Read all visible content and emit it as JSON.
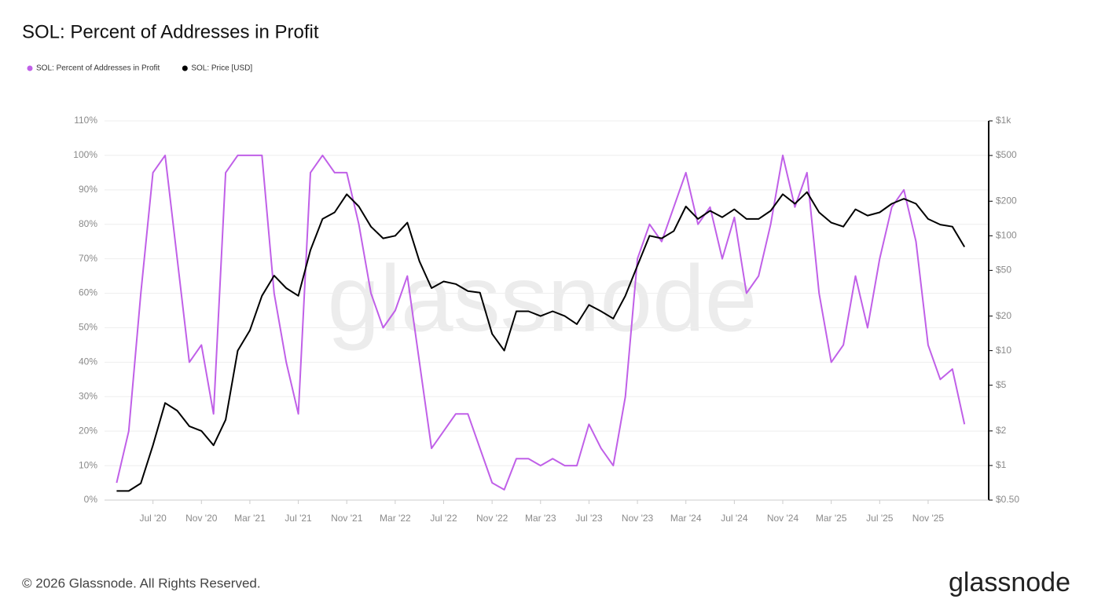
{
  "chart_data": {
    "type": "line",
    "title": "SOL: Percent of Addresses in Profit",
    "watermark": "glassnode",
    "footer": "© 2026 Glassnode. All Rights Reserved.",
    "logo": "glassnode",
    "x": [
      "2020-04",
      "2020-05",
      "2020-06",
      "2020-07",
      "2020-08",
      "2020-09",
      "2020-10",
      "2020-11",
      "2020-12",
      "2021-01",
      "2021-02",
      "2021-03",
      "2021-04",
      "2021-05",
      "2021-06",
      "2021-07",
      "2021-08",
      "2021-09",
      "2021-10",
      "2021-11",
      "2021-12",
      "2022-01",
      "2022-02",
      "2022-03",
      "2022-04",
      "2022-05",
      "2022-06",
      "2022-07",
      "2022-08",
      "2022-09",
      "2022-10",
      "2022-11",
      "2022-12",
      "2023-01",
      "2023-02",
      "2023-03",
      "2023-04",
      "2023-05",
      "2023-06",
      "2023-07",
      "2023-08",
      "2023-09",
      "2023-10",
      "2023-11",
      "2023-12",
      "2024-01",
      "2024-02",
      "2024-03",
      "2024-04",
      "2024-05",
      "2024-06",
      "2024-07",
      "2024-08",
      "2024-09",
      "2024-10",
      "2024-11",
      "2024-12",
      "2025-01",
      "2025-02",
      "2025-03",
      "2025-04",
      "2025-05",
      "2025-06",
      "2025-07",
      "2025-08",
      "2025-09",
      "2025-10",
      "2025-11",
      "2025-12",
      "2026-01",
      "2026-02"
    ],
    "series": [
      {
        "name": "SOL: Percent of Addresses in Profit",
        "color": "#c060e8",
        "axis": "y",
        "values": [
          5,
          20,
          60,
          95,
          100,
          70,
          40,
          45,
          25,
          95,
          100,
          100,
          100,
          60,
          40,
          25,
          95,
          100,
          95,
          95,
          80,
          60,
          50,
          55,
          65,
          40,
          15,
          20,
          25,
          25,
          15,
          5,
          3,
          12,
          12,
          10,
          12,
          10,
          10,
          22,
          15,
          10,
          30,
          70,
          80,
          75,
          85,
          95,
          80,
          85,
          70,
          82,
          60,
          65,
          80,
          100,
          85,
          95,
          60,
          40,
          45,
          65,
          50,
          70,
          85,
          90,
          75,
          45,
          35,
          38,
          22
        ]
      },
      {
        "name": "SOL: Price [USD]",
        "color": "#000000",
        "axis": "y2",
        "values": [
          0.6,
          0.6,
          0.7,
          1.5,
          3.5,
          3,
          2.2,
          2,
          1.5,
          2.5,
          10,
          15,
          30,
          45,
          35,
          30,
          75,
          140,
          160,
          230,
          180,
          120,
          95,
          100,
          130,
          60,
          35,
          40,
          38,
          33,
          32,
          14,
          10,
          22,
          22,
          20,
          22,
          20,
          17,
          25,
          22,
          19,
          30,
          55,
          100,
          95,
          110,
          180,
          140,
          165,
          145,
          170,
          140,
          140,
          165,
          230,
          190,
          240,
          160,
          130,
          120,
          170,
          150,
          160,
          190,
          210,
          190,
          140,
          125,
          120,
          80
        ]
      }
    ],
    "xlim": [
      "2020-03",
      "2026-04"
    ],
    "xticks": [
      {
        "value": "2020-07",
        "label": "Jul '20"
      },
      {
        "value": "2020-11",
        "label": "Nov '20"
      },
      {
        "value": "2021-03",
        "label": "Mar '21"
      },
      {
        "value": "2021-07",
        "label": "Jul '21"
      },
      {
        "value": "2021-11",
        "label": "Nov '21"
      },
      {
        "value": "2022-03",
        "label": "Mar '22"
      },
      {
        "value": "2022-07",
        "label": "Jul '22"
      },
      {
        "value": "2022-11",
        "label": "Nov '22"
      },
      {
        "value": "2023-03",
        "label": "Mar '23"
      },
      {
        "value": "2023-07",
        "label": "Jul '23"
      },
      {
        "value": "2023-11",
        "label": "Nov '23"
      },
      {
        "value": "2024-03",
        "label": "Mar '24"
      },
      {
        "value": "2024-07",
        "label": "Jul '24"
      },
      {
        "value": "2024-11",
        "label": "Nov '24"
      },
      {
        "value": "2025-03",
        "label": "Mar '25"
      },
      {
        "value": "2025-07",
        "label": "Jul '25"
      },
      {
        "value": "2025-11",
        "label": "Nov '25"
      }
    ],
    "ylim": [
      0,
      110
    ],
    "yticks": [
      {
        "value": 0,
        "label": "0%"
      },
      {
        "value": 10,
        "label": "10%"
      },
      {
        "value": 20,
        "label": "20%"
      },
      {
        "value": 30,
        "label": "30%"
      },
      {
        "value": 40,
        "label": "40%"
      },
      {
        "value": 50,
        "label": "50%"
      },
      {
        "value": 60,
        "label": "60%"
      },
      {
        "value": 70,
        "label": "70%"
      },
      {
        "value": 80,
        "label": "80%"
      },
      {
        "value": 90,
        "label": "90%"
      },
      {
        "value": 100,
        "label": "100%"
      },
      {
        "value": 110,
        "label": "110%"
      }
    ],
    "y2lim": [
      0.5,
      1000
    ],
    "y2scale": "log",
    "y2ticks": [
      {
        "value": 0.5,
        "label": "$0.50"
      },
      {
        "value": 1,
        "label": "$1"
      },
      {
        "value": 2,
        "label": "$2"
      },
      {
        "value": 5,
        "label": "$5"
      },
      {
        "value": 10,
        "label": "$10"
      },
      {
        "value": 20,
        "label": "$20"
      },
      {
        "value": 50,
        "label": "$50"
      },
      {
        "value": 100,
        "label": "$100"
      },
      {
        "value": 200,
        "label": "$200"
      },
      {
        "value": 500,
        "label": "$500"
      },
      {
        "value": 1000,
        "label": "$1k"
      }
    ],
    "grid": true
  }
}
